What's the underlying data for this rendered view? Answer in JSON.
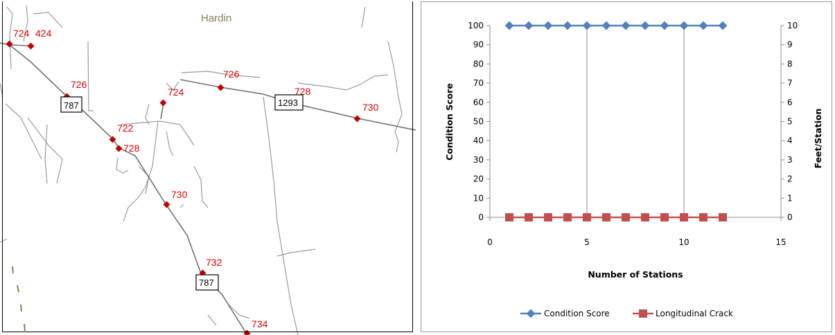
{
  "map": {
    "town": "Hardin",
    "colors": {
      "road": "#7f7f7f",
      "label": "#e00000",
      "marker": "#c00000",
      "town": "#8b7a55"
    },
    "route_shields": [
      "787",
      "1293",
      "787"
    ],
    "markers": [
      {
        "label": "724"
      },
      {
        "label": "424"
      },
      {
        "label": "726"
      },
      {
        "label": "724"
      },
      {
        "label": "726"
      },
      {
        "label": "728"
      },
      {
        "label": "730"
      },
      {
        "label": "722"
      },
      {
        "label": "728"
      },
      {
        "label": "730"
      },
      {
        "label": "732"
      },
      {
        "label": "734"
      }
    ]
  },
  "chart_data": {
    "type": "line",
    "title": "",
    "xlabel": "Number of Stations",
    "ylabel": "Condition Score",
    "y2label": "Feet/Station",
    "xlim": [
      0,
      15
    ],
    "ylim": [
      0,
      100
    ],
    "y2lim": [
      0,
      10
    ],
    "xticks": [
      0,
      5,
      10,
      15
    ],
    "yticks": [
      0,
      10,
      20,
      30,
      40,
      50,
      60,
      70,
      80,
      90,
      100
    ],
    "y2ticks": [
      0,
      1,
      2,
      3,
      4,
      5,
      6,
      7,
      8,
      9,
      10
    ],
    "vertical_gridlines": [
      5,
      10
    ],
    "legend_position": "bottom",
    "series": [
      {
        "name": "Condition Score",
        "axis": "left",
        "color": "#4f81bd",
        "marker": "diamond",
        "x": [
          1,
          2,
          3,
          4,
          5,
          6,
          7,
          8,
          9,
          10,
          11,
          12
        ],
        "values": [
          100,
          100,
          100,
          100,
          100,
          100,
          100,
          100,
          100,
          100,
          100,
          100
        ]
      },
      {
        "name": "Longitudinal Crack",
        "axis": "right",
        "color": "#c0504d",
        "marker": "square",
        "x": [
          1,
          2,
          3,
          4,
          5,
          6,
          7,
          8,
          9,
          10,
          11,
          12
        ],
        "values": [
          0,
          0,
          0,
          0,
          0,
          0,
          0,
          0,
          0,
          0,
          0,
          0
        ]
      }
    ]
  }
}
